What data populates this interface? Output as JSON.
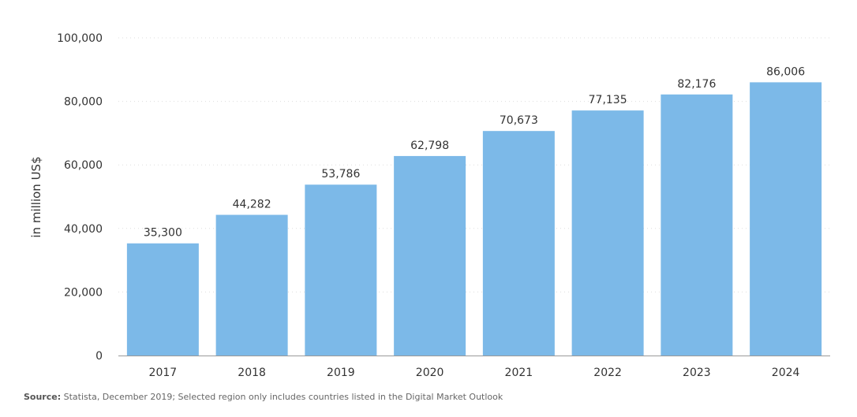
{
  "chart_data": {
    "type": "bar",
    "categories": [
      "2017",
      "2018",
      "2019",
      "2020",
      "2021",
      "2022",
      "2023",
      "2024"
    ],
    "values": [
      35300,
      44282,
      53786,
      62798,
      70673,
      77135,
      82176,
      86006
    ],
    "value_labels": [
      "35,300",
      "44,282",
      "53,786",
      "62,798",
      "70,673",
      "77,135",
      "82,176",
      "86,006"
    ],
    "ylabel": "in million US$",
    "ylim": [
      0,
      100000
    ],
    "y_ticks": [
      0,
      20000,
      40000,
      60000,
      80000,
      100000
    ],
    "y_tick_labels": [
      "0",
      "20,000",
      "40,000",
      "60,000",
      "80,000",
      "100,000"
    ],
    "grid": true,
    "legend": "none",
    "bar_color": "#7cb9e8",
    "grid_color": "#dddddd",
    "axis_color": "#999999",
    "text_color": "#333333"
  },
  "source": {
    "label": "Source:",
    "text": "Statista, December 2019; Selected region only includes countries listed in the Digital Market Outlook"
  }
}
